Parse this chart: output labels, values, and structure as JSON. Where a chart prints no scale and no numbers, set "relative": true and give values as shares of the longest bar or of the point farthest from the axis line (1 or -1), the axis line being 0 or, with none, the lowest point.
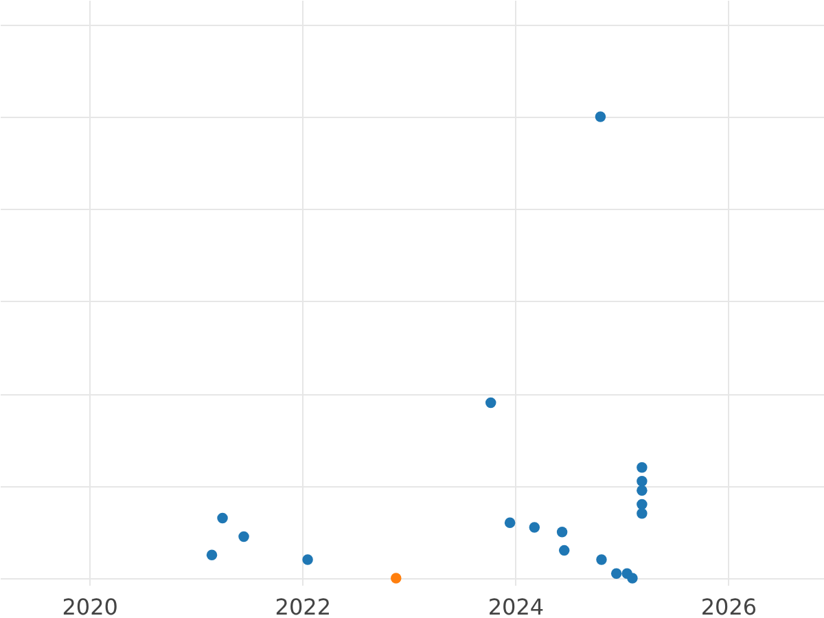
{
  "chart_data": {
    "type": "scatter",
    "relative": true,
    "grid": true,
    "marker": "circle",
    "xlim": [
      2019.16,
      2026.9
    ],
    "xticks": [
      2020,
      2022,
      2024,
      2026
    ],
    "x": [
      2021.15,
      2021.25,
      2021.45,
      2022.05,
      2022.88,
      2023.77,
      2023.95,
      2024.18,
      2024.44,
      2024.46,
      2024.8,
      2024.81,
      2024.95,
      2025.05,
      2025.1,
      2025.19,
      2025.19,
      2025.19,
      2025.19,
      2025.19
    ],
    "values": [
      0.05,
      0.13,
      0.09,
      0.04,
      0,
      0.38,
      0.12,
      0.11,
      0.1,
      0.06,
      1,
      0.04,
      0.01,
      0.01,
      0,
      0.24,
      0.21,
      0.19,
      0.16,
      0.14
    ],
    "colors": [
      "#1f77b4",
      "#1f77b4",
      "#1f77b4",
      "#1f77b4",
      "#ff7f0e",
      "#1f77b4",
      "#1f77b4",
      "#1f77b4",
      "#1f77b4",
      "#1f77b4",
      "#1f77b4",
      "#1f77b4",
      "#1f77b4",
      "#1f77b4",
      "#1f77b4",
      "#1f77b4",
      "#1f77b4",
      "#1f77b4",
      "#1f77b4",
      "#1f77b4"
    ]
  }
}
